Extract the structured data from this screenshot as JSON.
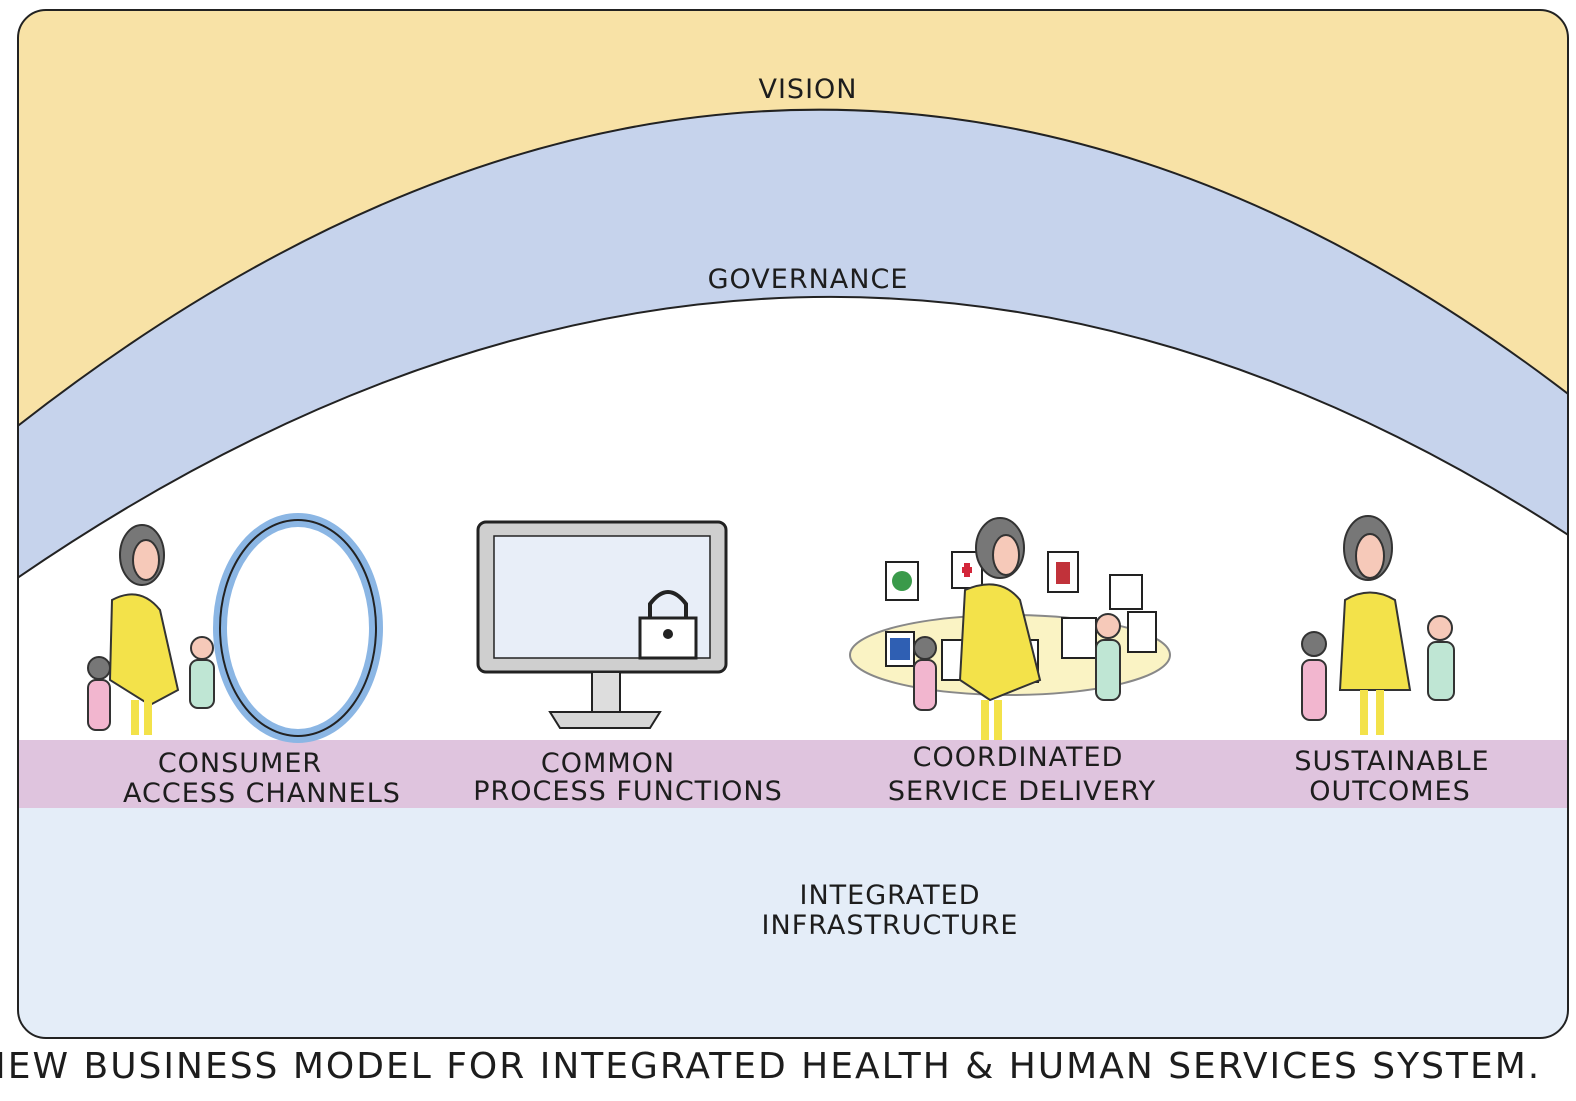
{
  "layers": {
    "vision": "VISION",
    "governance": "GOVERNANCE"
  },
  "components": [
    {
      "label": [
        "CONSUMER",
        "ACCESS CHANNELS"
      ]
    },
    {
      "label": [
        "COMMON",
        "PROCESS FUNCTIONS"
      ]
    },
    {
      "label": [
        "COORDINATED",
        "SERVICE DELIVERY"
      ]
    },
    {
      "label": [
        "SUSTAINABLE",
        "OUTCOMES"
      ]
    }
  ],
  "infrastructure": {
    "label": [
      "INTEGRATED",
      "INFRASTRUCTURE"
    ]
  },
  "caption": "NEW BUSINESS MODEL FOR INTEGRATED HEALTH & HUMAN SERVICES SYSTEM."
}
